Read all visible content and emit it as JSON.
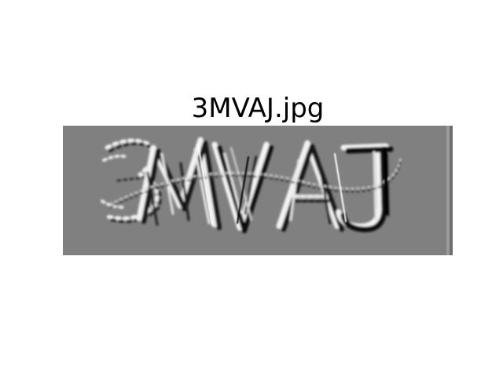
{
  "figure": {
    "title": "3MVAJ.jpg"
  },
  "image": {
    "captcha_text": "3MVAJ",
    "background_color": "#808080",
    "highlight_color": "#f2f2f2",
    "shadow_color": "#1a1a1a"
  }
}
